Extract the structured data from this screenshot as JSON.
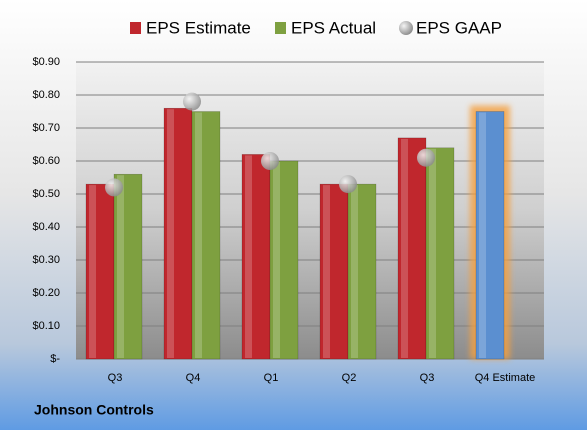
{
  "chart_data": {
    "type": "bar",
    "title": "Johnson Controls",
    "categories": [
      "Q3",
      "Q4",
      "Q1",
      "Q2",
      "Q3",
      "Q4 Estimate"
    ],
    "series": [
      {
        "name": "EPS Estimate",
        "color": "#c0272d",
        "colors": [
          "#c0272d",
          "#c0272d",
          "#c0272d",
          "#c0272d",
          "#c0272d",
          "#5b8fd0"
        ],
        "values": [
          0.53,
          0.76,
          0.62,
          0.53,
          0.67,
          0.75
        ]
      },
      {
        "name": "EPS Actual",
        "color": "#7ea040",
        "values": [
          0.56,
          0.75,
          0.6,
          0.53,
          0.64,
          null
        ]
      },
      {
        "name": "EPS GAAP",
        "color": "#a6a6a6",
        "marker": "circle",
        "values": [
          0.52,
          0.78,
          0.6,
          0.53,
          0.61,
          null
        ]
      }
    ],
    "ylim": [
      0,
      0.9
    ],
    "yticks": [
      {
        "value": 0,
        "label": "$-"
      },
      {
        "value": 0.1,
        "label": "$0.10"
      },
      {
        "value": 0.2,
        "label": "$0.20"
      },
      {
        "value": 0.3,
        "label": "$0.30"
      },
      {
        "value": 0.4,
        "label": "$0.40"
      },
      {
        "value": 0.5,
        "label": "$0.50"
      },
      {
        "value": 0.6,
        "label": "$0.60"
      },
      {
        "value": 0.7,
        "label": "$0.70"
      },
      {
        "value": 0.8,
        "label": "$0.80"
      },
      {
        "value": 0.9,
        "label": "$0.90"
      }
    ],
    "grid": true,
    "legend": "top"
  }
}
